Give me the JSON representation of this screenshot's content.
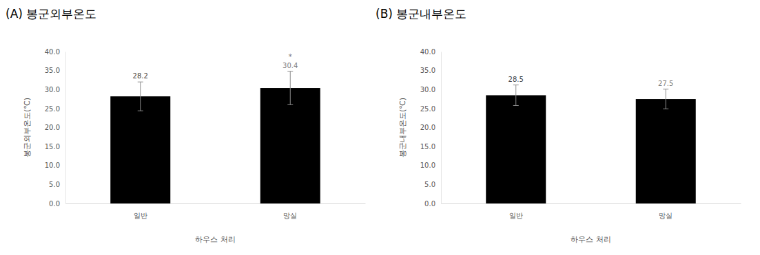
{
  "chart_data": [
    {
      "type": "bar",
      "title": "(A) 봉군외부온도",
      "x_label": "하우스 처리",
      "y_label": "봉군외부온도(℃)",
      "categories": [
        "일반",
        "망실"
      ],
      "values": [
        28.2,
        30.4
      ],
      "errors": [
        3.8,
        4.4
      ],
      "significance": [
        null,
        "*"
      ],
      "color": "#000000",
      "data_labels": true,
      "ylim": [
        0,
        40
      ],
      "yticks": [
        {
          "value": 0,
          "label": "0.0"
        },
        {
          "value": 5,
          "label": "5.0"
        },
        {
          "value": 10,
          "label": "10.0"
        },
        {
          "value": 15,
          "label": "15.0"
        },
        {
          "value": 20,
          "label": "20.0"
        },
        {
          "value": 25,
          "label": "25.0"
        },
        {
          "value": 30,
          "label": "30.0"
        },
        {
          "value": 35,
          "label": "35.0"
        },
        {
          "value": 40,
          "label": "40.0"
        }
      ]
    },
    {
      "type": "bar",
      "title": "(B) 봉군내부온도",
      "x_label": "하우스 처리",
      "y_label": "봉군내부온도(℃)",
      "categories": [
        "일반",
        "망실"
      ],
      "values": [
        28.5,
        27.5
      ],
      "errors": [
        2.7,
        2.6
      ],
      "color": "#000000",
      "data_labels": true,
      "ylim": [
        0,
        40
      ],
      "yticks": [
        {
          "value": 0,
          "label": "0.0"
        },
        {
          "value": 5,
          "label": "5.0"
        },
        {
          "value": 10,
          "label": "10.0"
        },
        {
          "value": 15,
          "label": "15.0"
        },
        {
          "value": 20,
          "label": "20.0"
        },
        {
          "value": 25,
          "label": "25.0"
        },
        {
          "value": 30,
          "label": "30.0"
        },
        {
          "value": 35,
          "label": "35.0"
        },
        {
          "value": 40,
          "label": "40.0"
        }
      ]
    }
  ]
}
